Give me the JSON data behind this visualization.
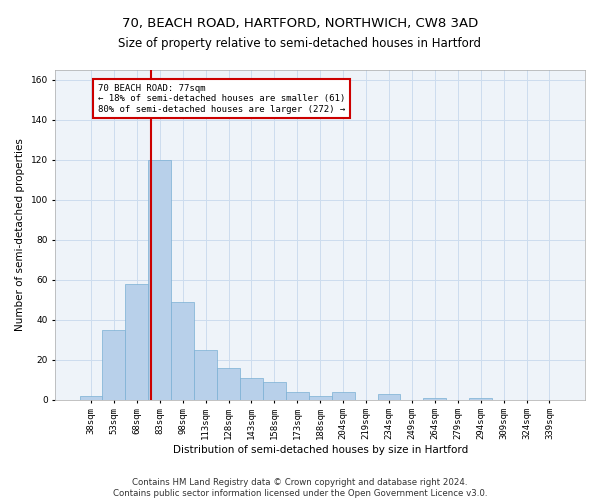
{
  "title_line1": "70, BEACH ROAD, HARTFORD, NORTHWICH, CW8 3AD",
  "title_line2": "Size of property relative to semi-detached houses in Hartford",
  "xlabel": "Distribution of semi-detached houses by size in Hartford",
  "ylabel": "Number of semi-detached properties",
  "categories": [
    "38sqm",
    "53sqm",
    "68sqm",
    "83sqm",
    "98sqm",
    "113sqm",
    "128sqm",
    "143sqm",
    "158sqm",
    "173sqm",
    "188sqm",
    "204sqm",
    "219sqm",
    "234sqm",
    "249sqm",
    "264sqm",
    "279sqm",
    "294sqm",
    "309sqm",
    "324sqm",
    "339sqm"
  ],
  "values": [
    2,
    35,
    58,
    120,
    49,
    25,
    16,
    11,
    9,
    4,
    2,
    4,
    0,
    3,
    0,
    1,
    0,
    1,
    0,
    0,
    0
  ],
  "bar_color": "#b8d0ea",
  "bar_edge_color": "#7aafd4",
  "bar_width": 1.0,
  "vline_x": 2.6,
  "vline_color": "#cc0000",
  "annotation_text": "70 BEACH ROAD: 77sqm\n← 18% of semi-detached houses are smaller (61)\n80% of semi-detached houses are larger (272) →",
  "annotation_box_color": "#ffffff",
  "annotation_box_edgecolor": "#cc0000",
  "ylim": [
    0,
    165
  ],
  "yticks": [
    0,
    20,
    40,
    60,
    80,
    100,
    120,
    140,
    160
  ],
  "grid_color": "#ccdcee",
  "background_color": "#eef3f9",
  "footer_line1": "Contains HM Land Registry data © Crown copyright and database right 2024.",
  "footer_line2": "Contains public sector information licensed under the Open Government Licence v3.0.",
  "title_fontsize": 9.5,
  "subtitle_fontsize": 8.5,
  "axis_label_fontsize": 7.5,
  "tick_fontsize": 6.5,
  "annotation_fontsize": 6.5,
  "footer_fontsize": 6.2
}
